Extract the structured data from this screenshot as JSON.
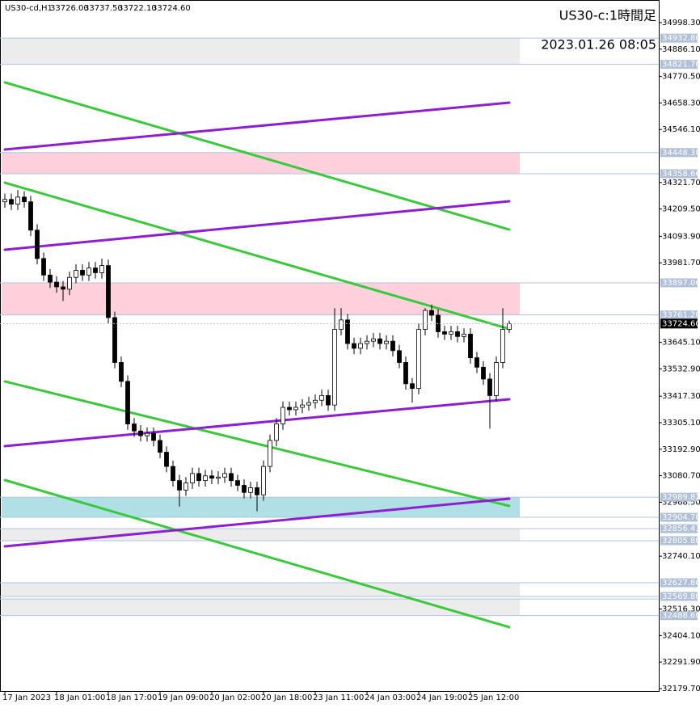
{
  "chart_data": {
    "type": "candlestick",
    "symbol": "US30-cd,H1",
    "header_prices": [
      "33726.00",
      "33737.50",
      "33722.10",
      "33724.60"
    ],
    "title": "US30-c:1時間足",
    "timestamp": "2023.01.26 08:05",
    "ylim": [
      32169.4,
      35094.1
    ],
    "yticks": [
      {
        "value": 34998.3,
        "label": "34998.30"
      },
      {
        "value": 34886.1,
        "label": "34886.10"
      },
      {
        "value": 34770.5,
        "label": "34770.50"
      },
      {
        "value": 34658.3,
        "label": "34658.30"
      },
      {
        "value": 34546.1,
        "label": "34546.10"
      },
      {
        "value": 34321.7,
        "label": "34321.70"
      },
      {
        "value": 34209.5,
        "label": "34209.50"
      },
      {
        "value": 34093.9,
        "label": "34093.90"
      },
      {
        "value": 33981.7,
        "label": "33981.70"
      },
      {
        "value": 33645.1,
        "label": "33645.10"
      },
      {
        "value": 33532.9,
        "label": "33532.90"
      },
      {
        "value": 33417.3,
        "label": "33417.30"
      },
      {
        "value": 33305.1,
        "label": "33305.10"
      },
      {
        "value": 33192.9,
        "label": "33192.90"
      },
      {
        "value": 33080.7,
        "label": "33080.70"
      },
      {
        "value": 32968.5,
        "label": "32968.50"
      },
      {
        "value": 32740.1,
        "label": "32740.10"
      },
      {
        "value": 32516.3,
        "label": "32516.30"
      },
      {
        "value": 32404.1,
        "label": "32404.10"
      },
      {
        "value": 32291.9,
        "label": "32291.90"
      },
      {
        "value": 32179.7,
        "label": "32179.70"
      }
    ],
    "xticks": [
      {
        "value": 0,
        "label": "17 Jan 2023"
      },
      {
        "value": 8,
        "label": "18 Jan 01:00"
      },
      {
        "value": 16,
        "label": "18 Jan 17:00"
      },
      {
        "value": 24,
        "label": "19 Jan 09:00"
      },
      {
        "value": 32,
        "label": "20 Jan 02:00"
      },
      {
        "value": 40,
        "label": "20 Jan 18:00"
      },
      {
        "value": 48,
        "label": "23 Jan 11:00"
      },
      {
        "value": 56,
        "label": "24 Jan 03:00"
      },
      {
        "value": 64,
        "label": "24 Jan 19:00"
      },
      {
        "value": 72,
        "label": "25 Jan 12:00"
      }
    ],
    "open": [
      34240,
      34250,
      34230,
      34260,
      34240,
      34120,
      34000,
      33930,
      33900,
      33880,
      33870,
      33920,
      33950,
      33930,
      33960,
      33940,
      33970,
      33750,
      33560,
      33480,
      33300,
      33270,
      33250,
      33260,
      33230,
      33180,
      33120,
      33060,
      33020,
      33050,
      33090,
      33060,
      33080,
      33070,
      33075,
      33090,
      33060,
      33040,
      33010,
      33030,
      33000,
      33120,
      33230,
      33300,
      33370,
      33360,
      33370,
      33380,
      33390,
      33400,
      33420,
      33380,
      33700,
      33740,
      33640,
      33620,
      33640,
      33650,
      33660,
      33640,
      33650,
      33610,
      33560,
      33470,
      33450,
      33700,
      33780,
      33760,
      33690,
      33680,
      33690,
      33670,
      33680,
      33580,
      33540,
      33490,
      33420,
      33560,
      33700
    ],
    "high": [
      34275,
      34275,
      34290,
      34285,
      34265,
      34145,
      34025,
      33955,
      33925,
      33905,
      33945,
      33975,
      33975,
      33985,
      33985,
      34000,
      33995,
      33775,
      33585,
      33505,
      33325,
      33295,
      33285,
      33285,
      33255,
      33205,
      33145,
      33085,
      33075,
      33115,
      33115,
      33105,
      33105,
      33100,
      33115,
      33115,
      33085,
      33065,
      33055,
      33055,
      33145,
      33255,
      33325,
      33395,
      33395,
      33395,
      33405,
      33415,
      33425,
      33445,
      33445,
      33790,
      33790,
      33765,
      33665,
      33665,
      33675,
      33685,
      33685,
      33675,
      33675,
      33635,
      33585,
      33495,
      33725,
      33790,
      33805,
      33785,
      33715,
      33715,
      33715,
      33705,
      33705,
      33605,
      33565,
      33515,
      33585,
      33790,
      33737.5
    ],
    "low": [
      34215,
      34205,
      34205,
      34215,
      34095,
      33975,
      33905,
      33875,
      33855,
      33820,
      33845,
      33895,
      33905,
      33905,
      33915,
      33915,
      33725,
      33535,
      33455,
      33275,
      33245,
      33225,
      33225,
      33205,
      33155,
      33095,
      33035,
      32950,
      32995,
      33025,
      33035,
      33035,
      33045,
      33045,
      33050,
      33035,
      33015,
      32985,
      32985,
      32930,
      32975,
      33095,
      33205,
      33275,
      33335,
      33335,
      33345,
      33355,
      33365,
      33375,
      33355,
      33355,
      33675,
      33615,
      33595,
      33595,
      33615,
      33625,
      33615,
      33615,
      33585,
      33535,
      33445,
      33390,
      33425,
      33675,
      33735,
      33665,
      33655,
      33655,
      33645,
      33645,
      33555,
      33515,
      33465,
      33280,
      33395,
      33535,
      33685
    ],
    "close": [
      34250,
      34230,
      34260,
      34240,
      34120,
      34000,
      33930,
      33900,
      33880,
      33870,
      33920,
      33950,
      33930,
      33960,
      33940,
      33970,
      33750,
      33560,
      33480,
      33300,
      33270,
      33250,
      33260,
      33230,
      33180,
      33120,
      33060,
      33020,
      33050,
      33090,
      33060,
      33080,
      33070,
      33075,
      33090,
      33060,
      33040,
      33010,
      33030,
      33000,
      33120,
      33230,
      33300,
      33370,
      33360,
      33370,
      33380,
      33390,
      33400,
      33420,
      33380,
      33700,
      33740,
      33640,
      33620,
      33640,
      33650,
      33660,
      33640,
      33650,
      33610,
      33560,
      33470,
      33450,
      33700,
      33780,
      33760,
      33690,
      33680,
      33690,
      33670,
      33680,
      33580,
      33540,
      33490,
      33420,
      33560,
      33700,
      33724.6
    ],
    "last_price": {
      "value": 33724.6,
      "label": "33724.60"
    },
    "zones": [
      {
        "color": "#ececec",
        "high": {
          "value": 34932.8,
          "label": "34932.80"
        },
        "low": {
          "value": 34821.7,
          "label": "34821.70"
        }
      },
      {
        "color": "#ffd1dc",
        "high": {
          "value": 34448.3,
          "label": "34448.30"
        },
        "low": {
          "value": 34358.66,
          "label": "34358.66"
        }
      },
      {
        "color": "#ffd1dc",
        "high": {
          "value": 33897.06,
          "label": "33897.06"
        },
        "low": {
          "value": 33761.2,
          "label": "33761.20"
        }
      },
      {
        "color": "#b0e0e6",
        "high": {
          "value": 32989.82,
          "label": "32989.82"
        },
        "low": {
          "value": 32904.7,
          "label": "32904.70"
        }
      },
      {
        "color": "#ececec",
        "high": {
          "value": 32856.43,
          "label": "32856.43"
        },
        "low": {
          "value": 32805.8,
          "label": "32805.80"
        }
      },
      {
        "color": "#ececec",
        "high": {
          "value": 32627.8,
          "label": "32627.80"
        },
        "low": {
          "value": 32569.8,
          "label": "32569.80"
        }
      },
      {
        "color": "#ececec",
        "high": 32559,
        "low": {
          "value": 32488.6,
          "label": "32488.60"
        }
      }
    ],
    "lines": [
      {
        "color": "#3cc83c",
        "x": [
          0,
          78
        ],
        "y": [
          34745.2,
          34122.6
        ]
      },
      {
        "color": "#3cc83c",
        "x": [
          0,
          78
        ],
        "y": [
          34321.0,
          33701.9
        ]
      },
      {
        "color": "#3cc83c",
        "x": [
          0,
          78
        ],
        "y": [
          33479.6,
          32952.8
        ]
      },
      {
        "color": "#3cc83c",
        "x": [
          0,
          78
        ],
        "y": [
          33062.2,
          32439.7
        ]
      },
      {
        "color": "#8e1fd0",
        "x": [
          0,
          78
        ],
        "y": [
          34461.3,
          34659.6
        ]
      },
      {
        "color": "#8e1fd0",
        "x": [
          0,
          78
        ],
        "y": [
          34037.1,
          34242.3
        ]
      },
      {
        "color": "#8e1fd0",
        "x": [
          0,
          78
        ],
        "y": [
          33205.9,
          33404.3
        ]
      },
      {
        "color": "#8e1fd0",
        "x": [
          0,
          78
        ],
        "y": [
          32781.7,
          32983.5
        ]
      }
    ]
  }
}
